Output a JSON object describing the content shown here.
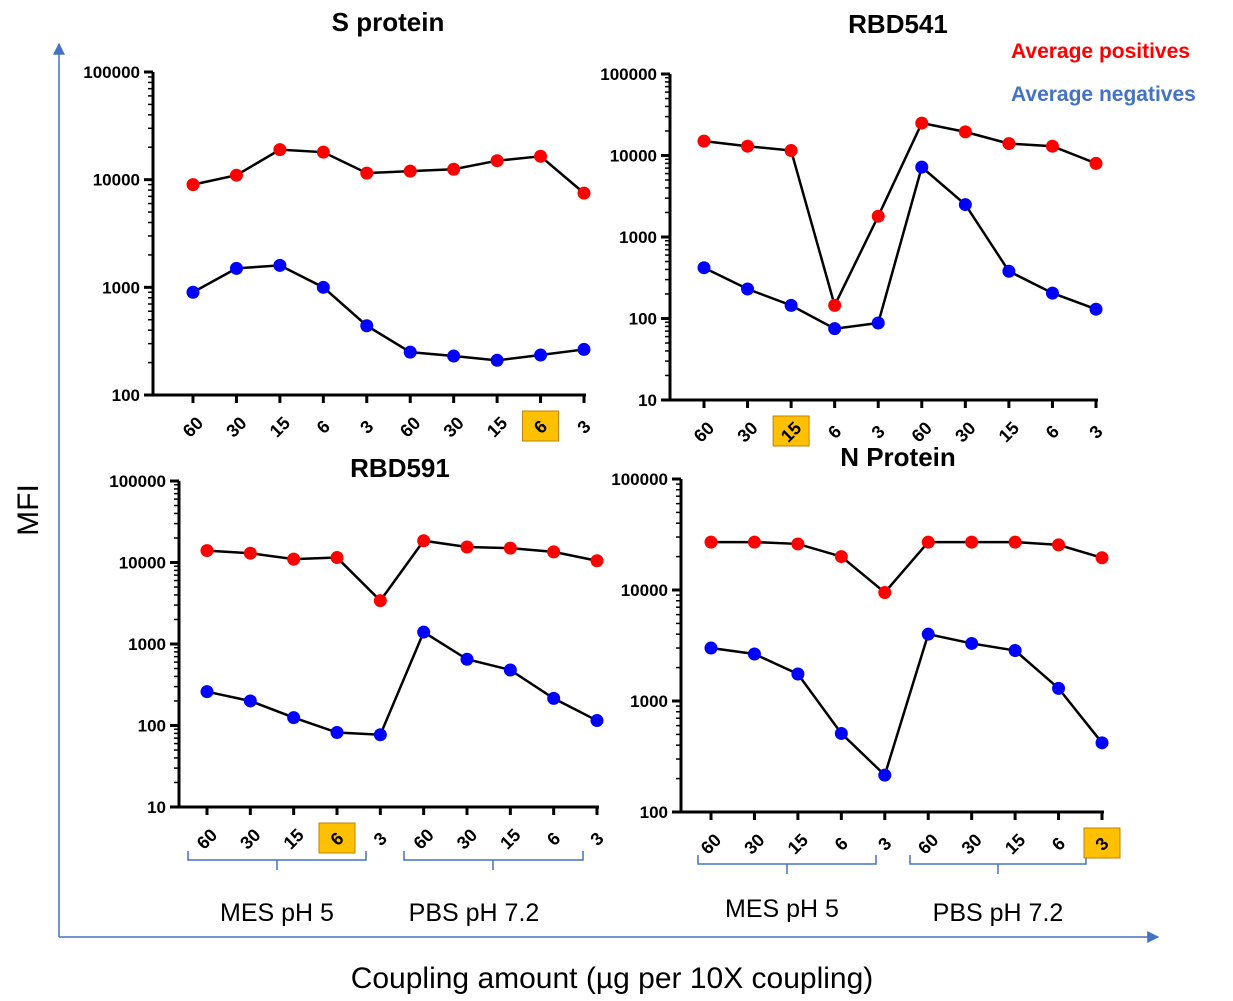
{
  "figure": {
    "ylabel": "MFI",
    "xlabel": "Coupling amount (µg per 10X coupling)",
    "legend": [
      {
        "label": "Average positives",
        "color": "#ff0000"
      },
      {
        "label": "Average negatives",
        "color": "#4472c4"
      }
    ],
    "group_labels": [
      "MES pH 5",
      "PBS pH 7.2"
    ],
    "colors": {
      "positive": "#ff0000",
      "negative": "#0000ff",
      "line": "#000000",
      "axis_arrow": "#4472c4",
      "highlight": "#ffc000"
    }
  },
  "chart_data": [
    {
      "type": "line",
      "title": "S protein",
      "yscale": "log",
      "ylim": [
        100,
        100000
      ],
      "yticks": [
        "100",
        "1000",
        "10000",
        "100000"
      ],
      "categories": [
        "60",
        "30",
        "15",
        "6",
        "3",
        "60",
        "30",
        "15",
        "6",
        "3"
      ],
      "highlighted_index": 8,
      "series": [
        {
          "name": "Average positives",
          "values": [
            9000,
            11000,
            19000,
            18000,
            11500,
            12000,
            12500,
            15000,
            16500,
            7500
          ]
        },
        {
          "name": "Average negatives",
          "values": [
            900,
            1500,
            1600,
            1000,
            440,
            250,
            230,
            210,
            235,
            265
          ]
        }
      ]
    },
    {
      "type": "line",
      "title": "RBD541",
      "yscale": "log",
      "ylim": [
        10,
        100000
      ],
      "yticks": [
        "10",
        "100",
        "1000",
        "10000",
        "100000"
      ],
      "categories": [
        "60",
        "30",
        "15",
        "6",
        "3",
        "60",
        "30",
        "15",
        "6",
        "3"
      ],
      "highlighted_index": 2,
      "series": [
        {
          "name": "Average positives",
          "values": [
            15000,
            13000,
            11500,
            145,
            1800,
            25000,
            19500,
            14000,
            13000,
            8000
          ]
        },
        {
          "name": "Average negatives",
          "values": [
            420,
            230,
            145,
            75,
            88,
            7200,
            2500,
            380,
            205,
            130
          ]
        }
      ]
    },
    {
      "type": "line",
      "title": "RBD591",
      "yscale": "log",
      "ylim": [
        10,
        100000
      ],
      "yticks": [
        "10",
        "100",
        "1000",
        "10000",
        "100000"
      ],
      "categories": [
        "60",
        "30",
        "15",
        "6",
        "3",
        "60",
        "30",
        "15",
        "6",
        "3"
      ],
      "highlighted_index": 3,
      "series": [
        {
          "name": "Average positives",
          "values": [
            14000,
            13000,
            11000,
            11500,
            3400,
            18500,
            15500,
            15000,
            13500,
            10500
          ]
        },
        {
          "name": "Average negatives",
          "values": [
            260,
            200,
            125,
            82,
            77,
            1400,
            650,
            480,
            215,
            115
          ]
        }
      ]
    },
    {
      "type": "line",
      "title": "N Protein",
      "yscale": "log",
      "ylim": [
        100,
        100000
      ],
      "yticks": [
        "100",
        "1000",
        "10000",
        "100000"
      ],
      "categories": [
        "60",
        "30",
        "15",
        "6",
        "3",
        "60",
        "30",
        "15",
        "6",
        "3"
      ],
      "highlighted_index": 9,
      "series": [
        {
          "name": "Average positives",
          "values": [
            27000,
            27000,
            26000,
            20000,
            9500,
            27000,
            27000,
            27000,
            25500,
            19500
          ]
        },
        {
          "name": "Average negatives",
          "values": [
            3000,
            2650,
            1750,
            510,
            215,
            4000,
            3300,
            2850,
            1300,
            420
          ]
        }
      ]
    }
  ]
}
